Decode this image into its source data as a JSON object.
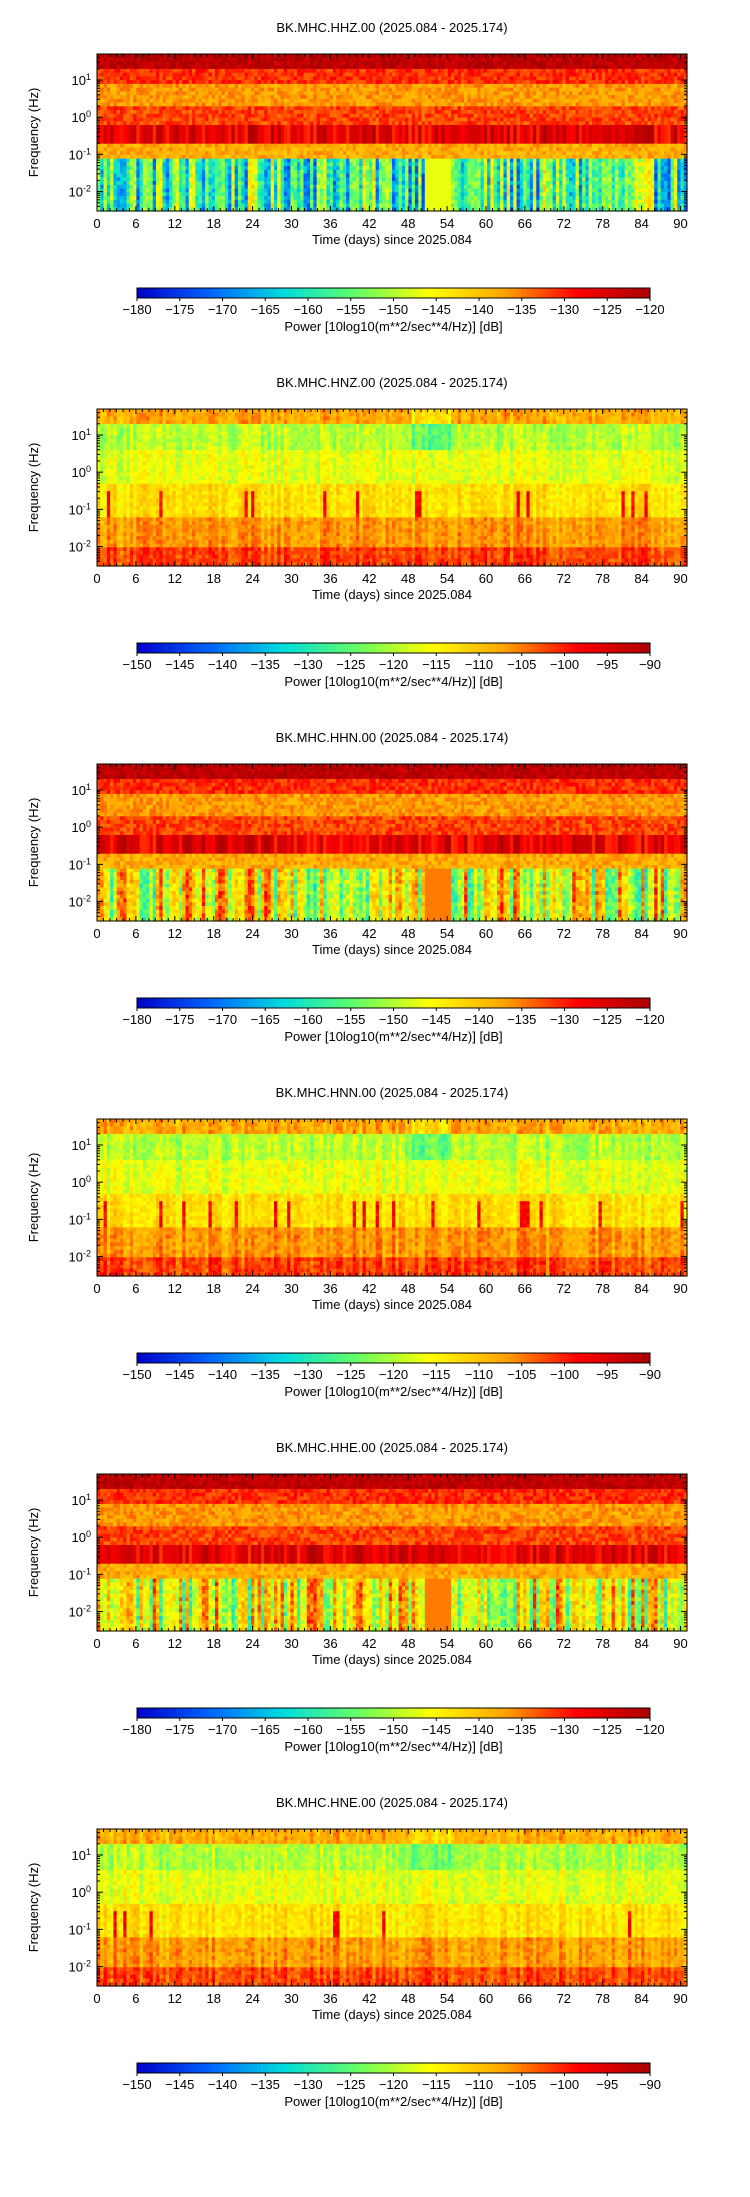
{
  "chart_data": [
    {
      "type": "heatmap",
      "title": "BK.MHC.HHZ.00 (2025.084 - 2025.174)",
      "xlabel": "Time (days) since 2025.084",
      "ylabel": "Frequency (Hz)",
      "x_ticks": [
        0,
        6,
        12,
        18,
        24,
        30,
        36,
        42,
        48,
        54,
        60,
        66,
        72,
        78,
        84,
        90
      ],
      "y_ticks": [
        {
          "base": "10",
          "exp": "-2",
          "value": 0.01
        },
        {
          "base": "10",
          "exp": "-1",
          "value": 0.1
        },
        {
          "base": "10",
          "exp": "0",
          "value": 1
        },
        {
          "base": "10",
          "exp": "1",
          "value": 10
        }
      ],
      "xlim": [
        0,
        91
      ],
      "y_log": true,
      "ylim": [
        0.003,
        50
      ],
      "colorbar_label": "Power [10log10(m**2/sec**4/Hz)] [dB]",
      "colorbar_ticks": [
        -180,
        -175,
        -170,
        -165,
        -160,
        -155,
        -150,
        -145,
        -140,
        -135,
        -130,
        -125,
        -120
      ],
      "clim": [
        -180,
        -120
      ],
      "colormap": [
        "#0000c8",
        "#0064ff",
        "#00dcdc",
        "#64ff64",
        "#ffff00",
        "#ffa500",
        "#ff0000",
        "#aa0000"
      ],
      "profile": "hh"
    },
    {
      "type": "heatmap",
      "title": "BK.MHC.HNZ.00 (2025.084 - 2025.174)",
      "xlabel": "Time (days) since 2025.084",
      "ylabel": "Frequency (Hz)",
      "x_ticks": [
        0,
        6,
        12,
        18,
        24,
        30,
        36,
        42,
        48,
        54,
        60,
        66,
        72,
        78,
        84,
        90
      ],
      "y_ticks": [
        {
          "base": "10",
          "exp": "-2",
          "value": 0.01
        },
        {
          "base": "10",
          "exp": "-1",
          "value": 0.1
        },
        {
          "base": "10",
          "exp": "0",
          "value": 1
        },
        {
          "base": "10",
          "exp": "1",
          "value": 10
        }
      ],
      "xlim": [
        0,
        91
      ],
      "y_log": true,
      "ylim": [
        0.003,
        50
      ],
      "colorbar_label": "Power [10log10(m**2/sec**4/Hz)] [dB]",
      "colorbar_ticks": [
        -150,
        -145,
        -140,
        -135,
        -130,
        -125,
        -120,
        -115,
        -110,
        -105,
        -100,
        -95,
        -90
      ],
      "clim": [
        -150,
        -90
      ],
      "colormap": [
        "#0000c8",
        "#0064ff",
        "#00dcdc",
        "#64ff64",
        "#ffff00",
        "#ffa500",
        "#ff0000",
        "#aa0000"
      ],
      "profile": "hn"
    },
    {
      "type": "heatmap",
      "title": "BK.MHC.HHN.00 (2025.084 - 2025.174)",
      "xlabel": "Time (days) since 2025.084",
      "ylabel": "Frequency (Hz)",
      "x_ticks": [
        0,
        6,
        12,
        18,
        24,
        30,
        36,
        42,
        48,
        54,
        60,
        66,
        72,
        78,
        84,
        90
      ],
      "y_ticks": [
        {
          "base": "10",
          "exp": "-2",
          "value": 0.01
        },
        {
          "base": "10",
          "exp": "-1",
          "value": 0.1
        },
        {
          "base": "10",
          "exp": "0",
          "value": 1
        },
        {
          "base": "10",
          "exp": "1",
          "value": 10
        }
      ],
      "xlim": [
        0,
        91
      ],
      "y_log": true,
      "ylim": [
        0.003,
        50
      ],
      "colorbar_label": "Power [10log10(m**2/sec**4/Hz)] [dB]",
      "colorbar_ticks": [
        -180,
        -175,
        -170,
        -165,
        -160,
        -155,
        -150,
        -145,
        -140,
        -135,
        -130,
        -125,
        -120
      ],
      "clim": [
        -180,
        -120
      ],
      "colormap": [
        "#0000c8",
        "#0064ff",
        "#00dcdc",
        "#64ff64",
        "#ffff00",
        "#ffa500",
        "#ff0000",
        "#aa0000"
      ],
      "profile": "hh"
    },
    {
      "type": "heatmap",
      "title": "BK.MHC.HNN.00 (2025.084 - 2025.174)",
      "xlabel": "Time (days) since 2025.084",
      "ylabel": "Frequency (Hz)",
      "x_ticks": [
        0,
        6,
        12,
        18,
        24,
        30,
        36,
        42,
        48,
        54,
        60,
        66,
        72,
        78,
        84,
        90
      ],
      "y_ticks": [
        {
          "base": "10",
          "exp": "-2",
          "value": 0.01
        },
        {
          "base": "10",
          "exp": "-1",
          "value": 0.1
        },
        {
          "base": "10",
          "exp": "0",
          "value": 1
        },
        {
          "base": "10",
          "exp": "1",
          "value": 10
        }
      ],
      "xlim": [
        0,
        91
      ],
      "y_log": true,
      "ylim": [
        0.003,
        50
      ],
      "colorbar_label": "Power [10log10(m**2/sec**4/Hz)] [dB]",
      "colorbar_ticks": [
        -150,
        -145,
        -140,
        -135,
        -130,
        -125,
        -120,
        -115,
        -110,
        -105,
        -100,
        -95,
        -90
      ],
      "clim": [
        -150,
        -90
      ],
      "colormap": [
        "#0000c8",
        "#0064ff",
        "#00dcdc",
        "#64ff64",
        "#ffff00",
        "#ffa500",
        "#ff0000",
        "#aa0000"
      ],
      "profile": "hn"
    },
    {
      "type": "heatmap",
      "title": "BK.MHC.HHE.00 (2025.084 - 2025.174)",
      "xlabel": "Time (days) since 2025.084",
      "ylabel": "Frequency (Hz)",
      "x_ticks": [
        0,
        6,
        12,
        18,
        24,
        30,
        36,
        42,
        48,
        54,
        60,
        66,
        72,
        78,
        84,
        90
      ],
      "y_ticks": [
        {
          "base": "10",
          "exp": "-2",
          "value": 0.01
        },
        {
          "base": "10",
          "exp": "-1",
          "value": 0.1
        },
        {
          "base": "10",
          "exp": "0",
          "value": 1
        },
        {
          "base": "10",
          "exp": "1",
          "value": 10
        }
      ],
      "xlim": [
        0,
        91
      ],
      "y_log": true,
      "ylim": [
        0.003,
        50
      ],
      "colorbar_label": "Power [10log10(m**2/sec**4/Hz)] [dB]",
      "colorbar_ticks": [
        -180,
        -175,
        -170,
        -165,
        -160,
        -155,
        -150,
        -145,
        -140,
        -135,
        -130,
        -125,
        -120
      ],
      "clim": [
        -180,
        -120
      ],
      "colormap": [
        "#0000c8",
        "#0064ff",
        "#00dcdc",
        "#64ff64",
        "#ffff00",
        "#ffa500",
        "#ff0000",
        "#aa0000"
      ],
      "profile": "hh"
    },
    {
      "type": "heatmap",
      "title": "BK.MHC.HNE.00 (2025.084 - 2025.174)",
      "xlabel": "Time (days) since 2025.084",
      "ylabel": "Frequency (Hz)",
      "x_ticks": [
        0,
        6,
        12,
        18,
        24,
        30,
        36,
        42,
        48,
        54,
        60,
        66,
        72,
        78,
        84,
        90
      ],
      "y_ticks": [
        {
          "base": "10",
          "exp": "-2",
          "value": 0.01
        },
        {
          "base": "10",
          "exp": "-1",
          "value": 0.1
        },
        {
          "base": "10",
          "exp": "0",
          "value": 1
        },
        {
          "base": "10",
          "exp": "1",
          "value": 10
        }
      ],
      "xlim": [
        0,
        91
      ],
      "y_log": true,
      "ylim": [
        0.003,
        50
      ],
      "colorbar_label": "Power [10log10(m**2/sec**4/Hz)] [dB]",
      "colorbar_ticks": [
        -150,
        -145,
        -140,
        -135,
        -130,
        -125,
        -120,
        -115,
        -110,
        -105,
        -100,
        -95,
        -90
      ],
      "clim": [
        -150,
        -90
      ],
      "colormap": [
        "#0000c8",
        "#0064ff",
        "#00dcdc",
        "#64ff64",
        "#ffff00",
        "#ffa500",
        "#ff0000",
        "#aa0000"
      ],
      "profile": "hn"
    }
  ]
}
